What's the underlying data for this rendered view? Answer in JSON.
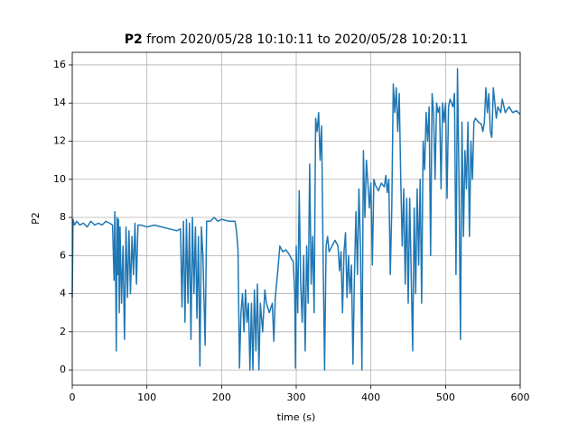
{
  "chart_data": {
    "type": "line",
    "title_bold": "P2",
    "title": "from 2020/05/28 10:10:11 to 2020/05/28 10:20:11",
    "x_label": "time (s)",
    "y_label": "P2",
    "xlim": [
      0,
      600
    ],
    "ylim": [
      -0.8,
      16.66
    ],
    "xticks": [
      0,
      100,
      200,
      300,
      400,
      500,
      600
    ],
    "yticks": [
      0,
      2,
      4,
      6,
      8,
      10,
      12,
      14,
      16
    ],
    "grid": true,
    "x": [
      0,
      1,
      3,
      6,
      10,
      15,
      20,
      25,
      30,
      35,
      40,
      45,
      50,
      54,
      56,
      57,
      58,
      59,
      60,
      61,
      62,
      63,
      64,
      66,
      68,
      70,
      72,
      74,
      76,
      78,
      80,
      82,
      84,
      86,
      88,
      92,
      100,
      110,
      120,
      130,
      140,
      145,
      147,
      149,
      151,
      153,
      155,
      157,
      159,
      161,
      163,
      165,
      167,
      169,
      171,
      173,
      175,
      178,
      180,
      185,
      190,
      195,
      200,
      210,
      218,
      220,
      222,
      224,
      226,
      228,
      230,
      232,
      234,
      236,
      238,
      240,
      242,
      244,
      246,
      248,
      250,
      252,
      255,
      258,
      260,
      264,
      268,
      270,
      272,
      276,
      278,
      282,
      286,
      290,
      294,
      296,
      298,
      299,
      300,
      302,
      304,
      306,
      308,
      310,
      312,
      314,
      316,
      318,
      320,
      322,
      324,
      326,
      328,
      330,
      332,
      334,
      336,
      338,
      340,
      342,
      344,
      348,
      352,
      356,
      358,
      360,
      362,
      364,
      366,
      368,
      370,
      372,
      374,
      376,
      378,
      380,
      382,
      384,
      386,
      388,
      390,
      392,
      394,
      396,
      398,
      400,
      402,
      404,
      406,
      410,
      414,
      418,
      420,
      422,
      424,
      426,
      428,
      430,
      432,
      434,
      436,
      438,
      440,
      442,
      444,
      446,
      448,
      450,
      452,
      454,
      456,
      458,
      460,
      462,
      464,
      466,
      468,
      470,
      472,
      474,
      476,
      478,
      480,
      482,
      484,
      486,
      488,
      490,
      492,
      494,
      496,
      498,
      500,
      502,
      504,
      506,
      508,
      510,
      512,
      514,
      516,
      518,
      520,
      522,
      524,
      526,
      528,
      530,
      532,
      534,
      536,
      538,
      540,
      544,
      548,
      550,
      552,
      554,
      556,
      558,
      560,
      562,
      564,
      566,
      568,
      570,
      574,
      576,
      580,
      585,
      590,
      595,
      600
    ],
    "series": [
      {
        "name": "P2",
        "color": "#1f77b4",
        "values": [
          3.8,
          7.9,
          7.6,
          7.8,
          7.6,
          7.7,
          7.5,
          7.8,
          7.6,
          7.7,
          7.6,
          7.8,
          7.7,
          7.6,
          4.7,
          8.3,
          5.5,
          1.0,
          8.0,
          5.0,
          7.9,
          3.0,
          7.5,
          3.5,
          6.5,
          1.6,
          7.5,
          3.8,
          7.3,
          4.0,
          7.0,
          5.0,
          7.7,
          4.5,
          7.6,
          7.6,
          7.5,
          7.6,
          7.5,
          7.4,
          7.3,
          7.4,
          3.3,
          7.8,
          2.5,
          7.9,
          3.5,
          7.7,
          1.6,
          8.0,
          4.0,
          7.5,
          2.7,
          7.0,
          0.2,
          7.5,
          6.0,
          1.3,
          7.8,
          7.8,
          8.0,
          7.8,
          7.9,
          7.8,
          7.8,
          7.3,
          6.3,
          0.1,
          3.0,
          4.0,
          2.0,
          4.2,
          2.5,
          3.5,
          0.0,
          3.5,
          0.0,
          4.2,
          1.0,
          4.5,
          0.0,
          3.5,
          2.0,
          4.2,
          3.5,
          3.0,
          3.5,
          1.5,
          3.8,
          5.5,
          6.5,
          6.2,
          6.3,
          6.1,
          5.8,
          5.7,
          4.0,
          0.1,
          6.5,
          3.0,
          9.4,
          4.5,
          2.5,
          6.0,
          1.0,
          6.5,
          3.5,
          10.8,
          4.5,
          7.0,
          3.0,
          13.2,
          12.5,
          13.5,
          11.0,
          12.8,
          6.0,
          0.0,
          6.5,
          7.0,
          6.2,
          6.5,
          6.8,
          6.5,
          5.2,
          6.2,
          3.0,
          6.2,
          7.2,
          3.8,
          6.0,
          4.0,
          5.5,
          0.3,
          5.0,
          8.3,
          5.0,
          9.5,
          6.5,
          0.0,
          11.5,
          8.0,
          11.0,
          9.8,
          8.5,
          9.8,
          5.5,
          10.0,
          9.7,
          9.4,
          9.8,
          9.6,
          10.2,
          9.3,
          10.0,
          5.0,
          8.5,
          15.0,
          13.5,
          14.8,
          12.5,
          14.5,
          10.0,
          6.5,
          9.5,
          4.5,
          9.0,
          3.5,
          9.0,
          5.0,
          1.0,
          8.5,
          4.0,
          9.5,
          5.5,
          10.0,
          3.5,
          12.0,
          10.5,
          13.5,
          12.0,
          13.8,
          6.0,
          14.5,
          13.5,
          10.0,
          14.0,
          13.5,
          13.8,
          9.5,
          14.0,
          13.0,
          14.0,
          9.0,
          13.8,
          14.2,
          14.0,
          13.8,
          14.5,
          5.0,
          15.8,
          10.0,
          1.6,
          13.0,
          7.0,
          11.5,
          9.5,
          13.0,
          7.0,
          12.0,
          10.0,
          13.0,
          13.2,
          13.0,
          12.9,
          12.5,
          13.0,
          14.8,
          13.5,
          14.5,
          12.5,
          12.2,
          14.8,
          14.0,
          13.2,
          13.8,
          13.5,
          14.2,
          13.5,
          13.8,
          13.5,
          13.6,
          13.4
        ]
      }
    ]
  }
}
